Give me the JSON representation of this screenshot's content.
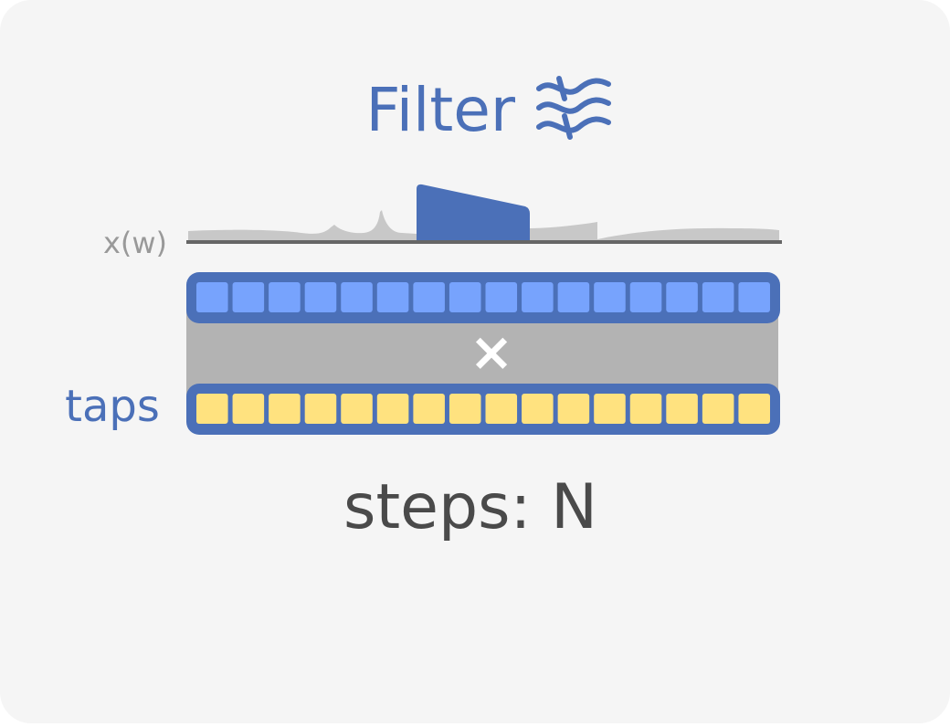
{
  "title": {
    "text": "Filter",
    "icon": "filter-waves-icon"
  },
  "spectrum": {
    "label": "x(w)"
  },
  "buffers": {
    "input_cells": 16,
    "taps_cells": 16,
    "taps_label": "taps",
    "operator": "×"
  },
  "steps_label": "steps: N",
  "colors": {
    "accent": "#4b70b8",
    "input_cell": "#77a3fd",
    "tap_cell": "#ffe27f",
    "band": "#b3b3b3",
    "spectrum_fill": "#c8c8c8",
    "axis": "#666666",
    "muted_text": "#999999",
    "dark_text": "#4a4a4a",
    "card_bg": "#f5f5f5"
  }
}
